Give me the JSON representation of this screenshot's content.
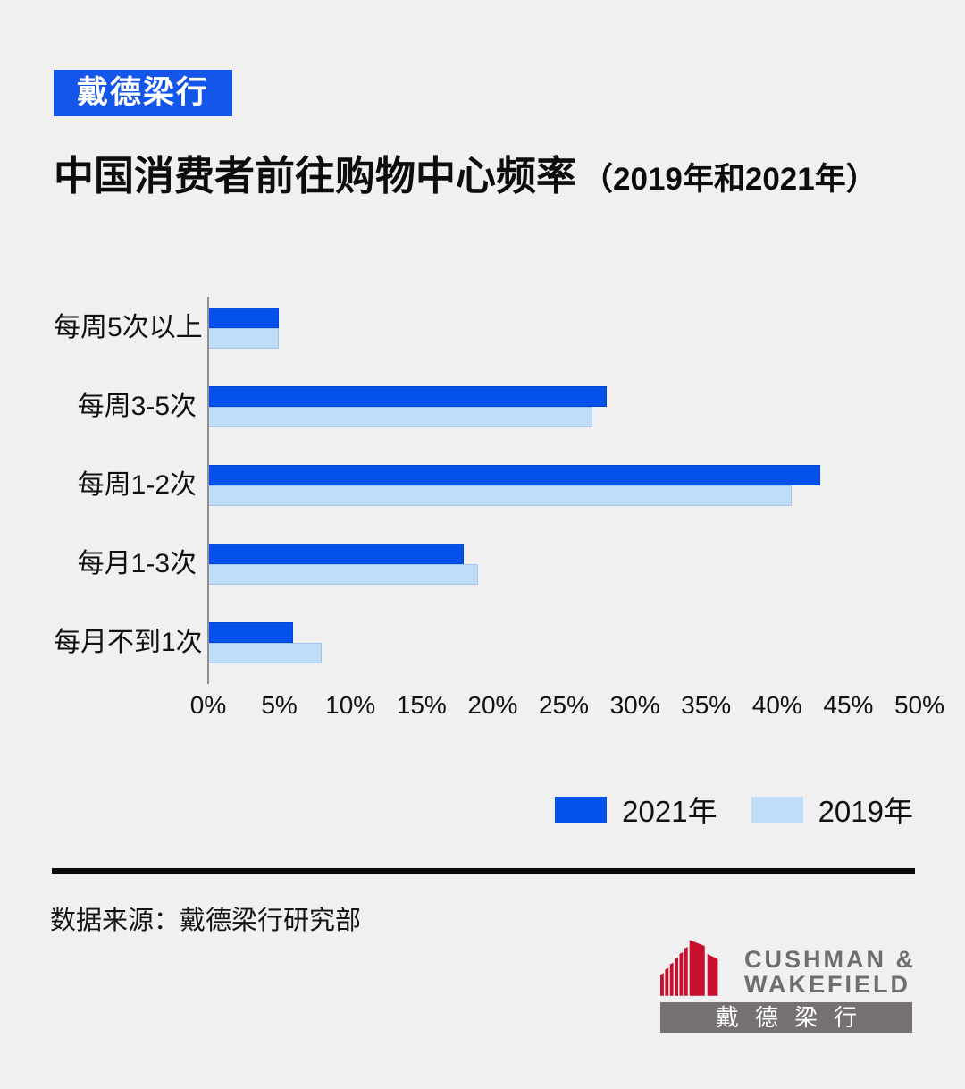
{
  "page": {
    "background": "#f0f0f0"
  },
  "header": {
    "badge": "戴德梁行",
    "badge_color": "#1456e9",
    "badge_text_color": "#ffffff"
  },
  "title": {
    "main": "中国消费者前往购物中心频率",
    "suffix": "（2019年和2021年）"
  },
  "chart_data": {
    "type": "bar",
    "orientation": "horizontal",
    "title": "中国消费者前往购物中心频率（2019年和2021年）",
    "categories": [
      "每周5次以上",
      "每周3-5次",
      "每周1-2次",
      "每月1-3次",
      "每月不到1次"
    ],
    "series": [
      {
        "name": "2021年",
        "color": "#0551ec",
        "values": [
          5,
          28,
          43,
          18,
          6
        ]
      },
      {
        "name": "2019年",
        "color": "#bfdcf8",
        "values": [
          5,
          27,
          41,
          19,
          8
        ]
      }
    ],
    "xlim": [
      0,
      50
    ],
    "x_ticks": [
      "0%",
      "5%",
      "10%",
      "15%",
      "20%",
      "25%",
      "30%",
      "35%",
      "40%",
      "45%",
      "50%"
    ],
    "xlabel": "",
    "ylabel": "",
    "grid": false,
    "legend_position": "bottom-right",
    "axis_color": "#8f8f8f"
  },
  "footer": {
    "source": "数据来源：戴德梁行研究部"
  },
  "logo": {
    "line1": "CUSHMAN &",
    "line2": "WAKEFIELD",
    "banner": "戴德梁行",
    "red": "#c8102e",
    "gray": "#6e6e70",
    "banner_bg": "#757170"
  }
}
